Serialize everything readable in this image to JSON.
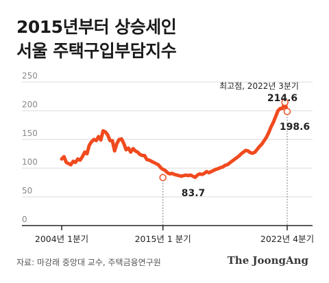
{
  "title_lines": [
    "2015년부터 상승세인",
    "서울 주택구입부담지수"
  ],
  "source": "자료: 마강래 중앙대 교수, 주택금융연구원",
  "logo": "The JoongAng",
  "chart_data": {
    "type": "line",
    "title": "2015년부터 상승세인 서울 주택구입부담지수",
    "x_start_label": "2004년 1분기",
    "x_tick_labels": [
      "2004년 1분기",
      "2015년 1 분기",
      "2022년 4분기"
    ],
    "yticks": [
      0,
      50,
      100,
      150,
      200,
      250
    ],
    "ylim": [
      0,
      250
    ],
    "grid": true,
    "series": [
      {
        "values": [
          116,
          120,
          110,
          108,
          106,
          112,
          110,
          116,
          114,
          120,
          128,
          125,
          140,
          146,
          150,
          148,
          155,
          149,
          165,
          163,
          158,
          148,
          148,
          130,
          143,
          150,
          151,
          143,
          132,
          135,
          128,
          134,
          130,
          128,
          124,
          122,
          122,
          115,
          114,
          112,
          110,
          108,
          106,
          101,
          98,
          96,
          92,
          90,
          91,
          89,
          88,
          87,
          86,
          87,
          88,
          87,
          88,
          86,
          84,
          88,
          90,
          89,
          91,
          94,
          92,
          94,
          96,
          98,
          99,
          101,
          102,
          105,
          106,
          109,
          112,
          115,
          118,
          121,
          125,
          128,
          131,
          130,
          127,
          126,
          128,
          133,
          138,
          142,
          148,
          154,
          162,
          172,
          180,
          190,
          200,
          204,
          204,
          214.6,
          198.6
        ]
      }
    ],
    "annotations": [
      {
        "label": "83.7",
        "value": 83.7,
        "position": "2015년 1분기"
      },
      {
        "label": "214.6",
        "value": 214.6,
        "caption": "최고점, 2022년 3분기",
        "position": "2022년 3분기"
      },
      {
        "label": "198.6",
        "value": 198.6,
        "position": "2022년 4분기"
      }
    ],
    "line_color": "#f04a1e"
  }
}
